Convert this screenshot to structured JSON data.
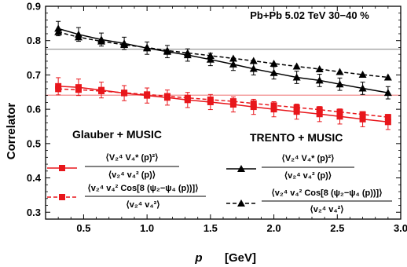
{
  "chart_data": {
    "type": "line",
    "annotation": "Pb+Pb 5.02 TeV   30−40 %",
    "xlabel": "p",
    "xunit": "[GeV]",
    "ylabel": "Correlator",
    "xlim": [
      0.2,
      3.0
    ],
    "ylim": [
      0.28,
      0.9
    ],
    "xticks": [
      "0.5",
      "1.0",
      "1.5",
      "2.0",
      "2.5",
      "3.0"
    ],
    "yticks": [
      "0.3",
      "0.4",
      "0.5",
      "0.6",
      "0.7",
      "0.8",
      "0.9"
    ],
    "grid": false,
    "hlines": [
      {
        "y": 0.775,
        "color": "#999999"
      },
      {
        "y": 0.641,
        "color": "#f08080"
      }
    ],
    "legend_groups": [
      {
        "title": "Glauber  + MUSIC",
        "color": "#e8161b"
      },
      {
        "title": "TRENTO  + MUSIC",
        "color": "#000000"
      }
    ],
    "series": [
      {
        "legend_num": "⟨V₂⁴ V₄* (p)²⟩",
        "legend_den": "⟨v₂⁴ v₄² (p)⟩",
        "color": "#e8161b",
        "marker": "square",
        "dash": "solid",
        "x": [
          0.3,
          0.46,
          0.64,
          0.82,
          1.0,
          1.16,
          1.32,
          1.5,
          1.68,
          1.84,
          2.0,
          2.18,
          2.36,
          2.52,
          2.7,
          2.9
        ],
        "y": [
          0.667,
          0.664,
          0.656,
          0.647,
          0.64,
          0.634,
          0.627,
          0.621,
          0.614,
          0.607,
          0.6,
          0.593,
          0.586,
          0.579,
          0.571,
          0.563
        ],
        "err": [
          0.025,
          0.024,
          0.023,
          0.022,
          0.022,
          0.022,
          0.022,
          0.022,
          0.022,
          0.022,
          0.022,
          0.022,
          0.022,
          0.022,
          0.022,
          0.022
        ]
      },
      {
        "legend_num": "⟨v₂⁴ v₄² Cos[8 (ψ₂−ψ₄ (p))]⟩",
        "legend_den": "⟨v₂⁴ v₄²⟩",
        "color": "#e8161b",
        "marker": "square",
        "dash": "dashed",
        "x": [
          0.3,
          0.46,
          0.64,
          0.82,
          1.0,
          1.16,
          1.32,
          1.5,
          1.68,
          1.84,
          2.0,
          2.18,
          2.36,
          2.52,
          2.7,
          2.9
        ],
        "y": [
          0.659,
          0.657,
          0.653,
          0.648,
          0.643,
          0.638,
          0.633,
          0.628,
          0.623,
          0.617,
          0.611,
          0.605,
          0.599,
          0.592,
          0.585,
          0.577
        ],
        "err": [
          0.0,
          0.0,
          0.0,
          0.0,
          0.0,
          0.0,
          0.0,
          0.0,
          0.0,
          0.0,
          0.0,
          0.0,
          0.0,
          0.0,
          0.0,
          0.0
        ]
      },
      {
        "legend_num": "⟨V₂⁴ V₄* (p)²⟩",
        "legend_den": "⟨v₂⁴ v₄² (p)⟩",
        "color": "#000000",
        "marker": "triangle",
        "dash": "solid",
        "x": [
          0.3,
          0.46,
          0.64,
          0.82,
          1.0,
          1.16,
          1.32,
          1.5,
          1.68,
          1.84,
          2.0,
          2.18,
          2.36,
          2.52,
          2.7,
          2.9
        ],
        "y": [
          0.835,
          0.818,
          0.803,
          0.792,
          0.778,
          0.768,
          0.758,
          0.745,
          0.731,
          0.718,
          0.706,
          0.693,
          0.684,
          0.673,
          0.661,
          0.648
        ],
        "err": [
          0.021,
          0.02,
          0.019,
          0.018,
          0.018,
          0.018,
          0.018,
          0.018,
          0.018,
          0.018,
          0.018,
          0.018,
          0.018,
          0.018,
          0.018,
          0.018
        ]
      },
      {
        "legend_num": "⟨v₂⁴ v₄² Cos[8 (ψ₂−ψ₄ (p))]⟩",
        "legend_den": "⟨v₂⁴ v₄²⟩",
        "color": "#000000",
        "marker": "triangle",
        "dash": "dashed",
        "x": [
          0.3,
          0.46,
          0.64,
          0.82,
          1.0,
          1.16,
          1.32,
          1.5,
          1.68,
          1.84,
          2.0,
          2.18,
          2.36,
          2.52,
          2.7,
          2.9
        ],
        "y": [
          0.825,
          0.81,
          0.798,
          0.788,
          0.78,
          0.771,
          0.764,
          0.756,
          0.748,
          0.741,
          0.733,
          0.725,
          0.717,
          0.709,
          0.701,
          0.693
        ],
        "err": [
          0.0,
          0.0,
          0.0,
          0.0,
          0.0,
          0.0,
          0.0,
          0.0,
          0.0,
          0.0,
          0.0,
          0.0,
          0.0,
          0.0,
          0.0,
          0.0
        ]
      }
    ]
  }
}
